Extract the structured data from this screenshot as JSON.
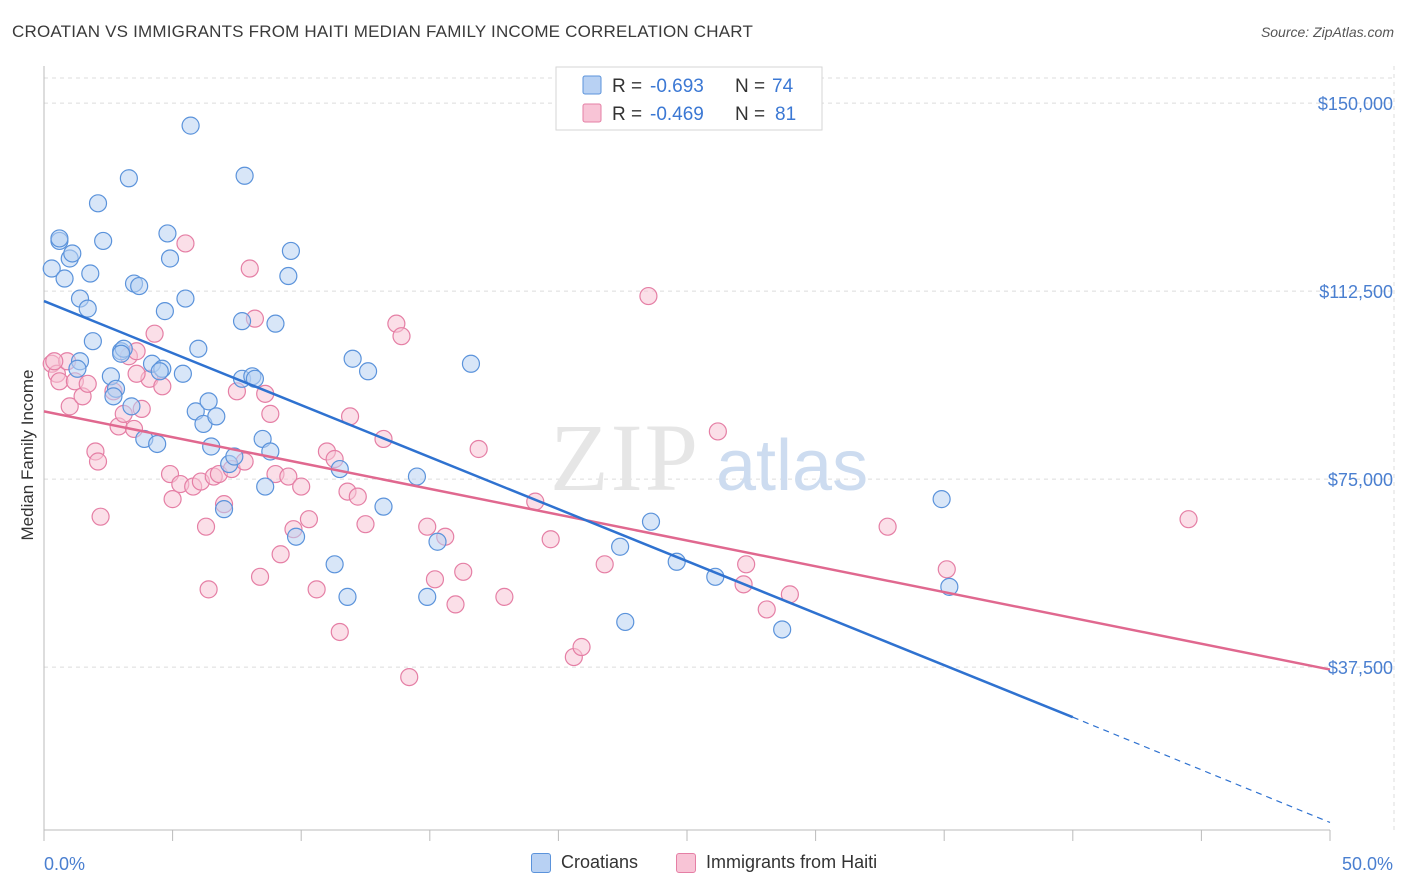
{
  "title": "CROATIAN VS IMMIGRANTS FROM HAITI MEDIAN FAMILY INCOME CORRELATION CHART",
  "source": "Source: ZipAtlas.com",
  "watermark": {
    "zip": "ZIP",
    "atlas": "atlas"
  },
  "colors": {
    "blue": "#5b93db",
    "blue_fill": "#b8d1f3",
    "blue_line": "#2f72d0",
    "pink": "#e57fa5",
    "pink_fill": "#f8c4d6",
    "pink_line": "#e0688f",
    "tick_label": "#4a7fd0",
    "grid": "#dcdcdc"
  },
  "legend_box": {
    "row1": {
      "r_label": "R =",
      "r_value": "-0.693",
      "n_label": "N =",
      "n_value": "74"
    },
    "row2": {
      "r_label": "R =",
      "r_value": "-0.469",
      "n_label": "N =",
      "n_value": "81"
    }
  },
  "bottom_legend": {
    "croatians": "Croatians",
    "haiti": "Immigrants from Haiti"
  },
  "chart_data": {
    "type": "scatter",
    "title": "CROATIAN VS IMMIGRANTS FROM HAITI MEDIAN FAMILY INCOME CORRELATION CHART",
    "xlabel": "",
    "ylabel": "Median Family Income",
    "xlim": [
      0,
      50
    ],
    "ylim": [
      5000,
      155000
    ],
    "x_tick_labels": [
      "0.0%",
      "50.0%"
    ],
    "y_ticks": [
      37500,
      75000,
      112500,
      150000
    ],
    "y_tick_labels": [
      "$37,500",
      "$75,000",
      "$112,500",
      "$150,000"
    ],
    "grid": true,
    "legend_position": "top-center",
    "series": [
      {
        "name": "Croatians",
        "r": -0.693,
        "n": 74,
        "trend": {
          "x0": 0,
          "y0": 110500,
          "x1": 40,
          "y1": 27500,
          "dash_to_x": 50,
          "dash_to_y": 6500
        },
        "points": [
          [
            0.3,
            117000
          ],
          [
            0.6,
            122500
          ],
          [
            0.8,
            115000
          ],
          [
            1.0,
            119000
          ],
          [
            0.6,
            123000
          ],
          [
            1.1,
            120000
          ],
          [
            1.4,
            111000
          ],
          [
            1.7,
            109000
          ],
          [
            1.8,
            116000
          ],
          [
            2.1,
            130000
          ],
          [
            2.3,
            122500
          ],
          [
            3.3,
            135000
          ],
          [
            3.5,
            114000
          ],
          [
            3.7,
            113500
          ],
          [
            4.8,
            124000
          ],
          [
            4.9,
            119000
          ],
          [
            5.5,
            111000
          ],
          [
            4.7,
            108500
          ],
          [
            5.7,
            145500
          ],
          [
            7.8,
            135500
          ],
          [
            9.6,
            120500
          ],
          [
            9.5,
            115500
          ],
          [
            7.7,
            106500
          ],
          [
            9.0,
            106000
          ],
          [
            1.4,
            98500
          ],
          [
            1.9,
            102500
          ],
          [
            2.6,
            95500
          ],
          [
            2.8,
            93000
          ],
          [
            3.0,
            100500
          ],
          [
            3.1,
            101000
          ],
          [
            2.7,
            91500
          ],
          [
            3.4,
            89500
          ],
          [
            3.9,
            83000
          ],
          [
            4.2,
            98000
          ],
          [
            4.6,
            97000
          ],
          [
            4.4,
            82000
          ],
          [
            5.4,
            96000
          ],
          [
            5.9,
            88500
          ],
          [
            6.0,
            101000
          ],
          [
            6.2,
            86000
          ],
          [
            6.4,
            90500
          ],
          [
            6.5,
            81500
          ],
          [
            6.7,
            87500
          ],
          [
            7.0,
            69000
          ],
          [
            7.2,
            78000
          ],
          [
            7.4,
            79500
          ],
          [
            7.7,
            95000
          ],
          [
            8.1,
            95500
          ],
          [
            8.2,
            95000
          ],
          [
            8.5,
            83000
          ],
          [
            8.8,
            80500
          ],
          [
            8.6,
            73500
          ],
          [
            9.8,
            63500
          ],
          [
            11.5,
            77000
          ],
          [
            11.3,
            58000
          ],
          [
            11.8,
            51500
          ],
          [
            12.0,
            99000
          ],
          [
            12.6,
            96500
          ],
          [
            13.2,
            69500
          ],
          [
            14.5,
            75500
          ],
          [
            14.9,
            51500
          ],
          [
            15.3,
            62500
          ],
          [
            16.6,
            98000
          ],
          [
            22.6,
            46500
          ],
          [
            22.4,
            61500
          ],
          [
            23.6,
            66500
          ],
          [
            24.6,
            58500
          ],
          [
            26.1,
            55500
          ],
          [
            28.7,
            45000
          ],
          [
            35.2,
            53500
          ],
          [
            34.9,
            71000
          ],
          [
            1.3,
            97000
          ],
          [
            4.5,
            96500
          ],
          [
            3.0,
            100000
          ]
        ]
      },
      {
        "name": "Immigrants from Haiti",
        "r": -0.469,
        "n": 81,
        "trend": {
          "x0": 0,
          "y0": 88500,
          "x1": 50,
          "y1": 37000
        },
        "points": [
          [
            0.3,
            98000
          ],
          [
            0.5,
            96000
          ],
          [
            0.6,
            94500
          ],
          [
            0.9,
            98500
          ],
          [
            1.0,
            89500
          ],
          [
            1.2,
            94500
          ],
          [
            1.5,
            91500
          ],
          [
            1.7,
            94000
          ],
          [
            2.0,
            80500
          ],
          [
            2.1,
            78500
          ],
          [
            2.7,
            92500
          ],
          [
            2.9,
            85500
          ],
          [
            3.1,
            88000
          ],
          [
            3.3,
            99500
          ],
          [
            3.5,
            85000
          ],
          [
            3.6,
            100500
          ],
          [
            3.8,
            89000
          ],
          [
            4.1,
            95000
          ],
          [
            4.3,
            104000
          ],
          [
            4.6,
            93500
          ],
          [
            2.2,
            67500
          ],
          [
            4.9,
            76000
          ],
          [
            5.0,
            71000
          ],
          [
            5.3,
            74000
          ],
          [
            5.5,
            122000
          ],
          [
            5.8,
            73500
          ],
          [
            6.1,
            74500
          ],
          [
            6.3,
            65500
          ],
          [
            6.4,
            53000
          ],
          [
            6.6,
            75500
          ],
          [
            6.8,
            76000
          ],
          [
            7.0,
            70000
          ],
          [
            7.3,
            77000
          ],
          [
            7.5,
            92500
          ],
          [
            7.8,
            78500
          ],
          [
            8.0,
            117000
          ],
          [
            8.2,
            107000
          ],
          [
            8.4,
            55500
          ],
          [
            8.6,
            92000
          ],
          [
            8.8,
            88000
          ],
          [
            9.0,
            76000
          ],
          [
            9.2,
            60000
          ],
          [
            9.5,
            75500
          ],
          [
            9.7,
            65000
          ],
          [
            10.0,
            73500
          ],
          [
            10.3,
            67000
          ],
          [
            10.6,
            53000
          ],
          [
            11.0,
            80500
          ],
          [
            11.3,
            79000
          ],
          [
            11.5,
            44500
          ],
          [
            11.8,
            72500
          ],
          [
            11.9,
            87500
          ],
          [
            12.2,
            71500
          ],
          [
            12.5,
            66000
          ],
          [
            13.2,
            83000
          ],
          [
            13.7,
            106000
          ],
          [
            13.9,
            103500
          ],
          [
            14.2,
            35500
          ],
          [
            14.9,
            65500
          ],
          [
            15.2,
            55000
          ],
          [
            15.6,
            63500
          ],
          [
            16.0,
            50000
          ],
          [
            16.3,
            56500
          ],
          [
            16.9,
            81000
          ],
          [
            17.9,
            51500
          ],
          [
            19.1,
            70500
          ],
          [
            19.7,
            63000
          ],
          [
            20.6,
            39500
          ],
          [
            20.9,
            41500
          ],
          [
            21.8,
            58000
          ],
          [
            23.5,
            111500
          ],
          [
            26.2,
            84500
          ],
          [
            27.2,
            54000
          ],
          [
            27.3,
            58000
          ],
          [
            28.1,
            49000
          ],
          [
            29.0,
            52000
          ],
          [
            32.8,
            65500
          ],
          [
            35.1,
            57000
          ],
          [
            44.5,
            67000
          ],
          [
            3.6,
            96000
          ],
          [
            0.4,
            98500
          ]
        ]
      }
    ]
  }
}
